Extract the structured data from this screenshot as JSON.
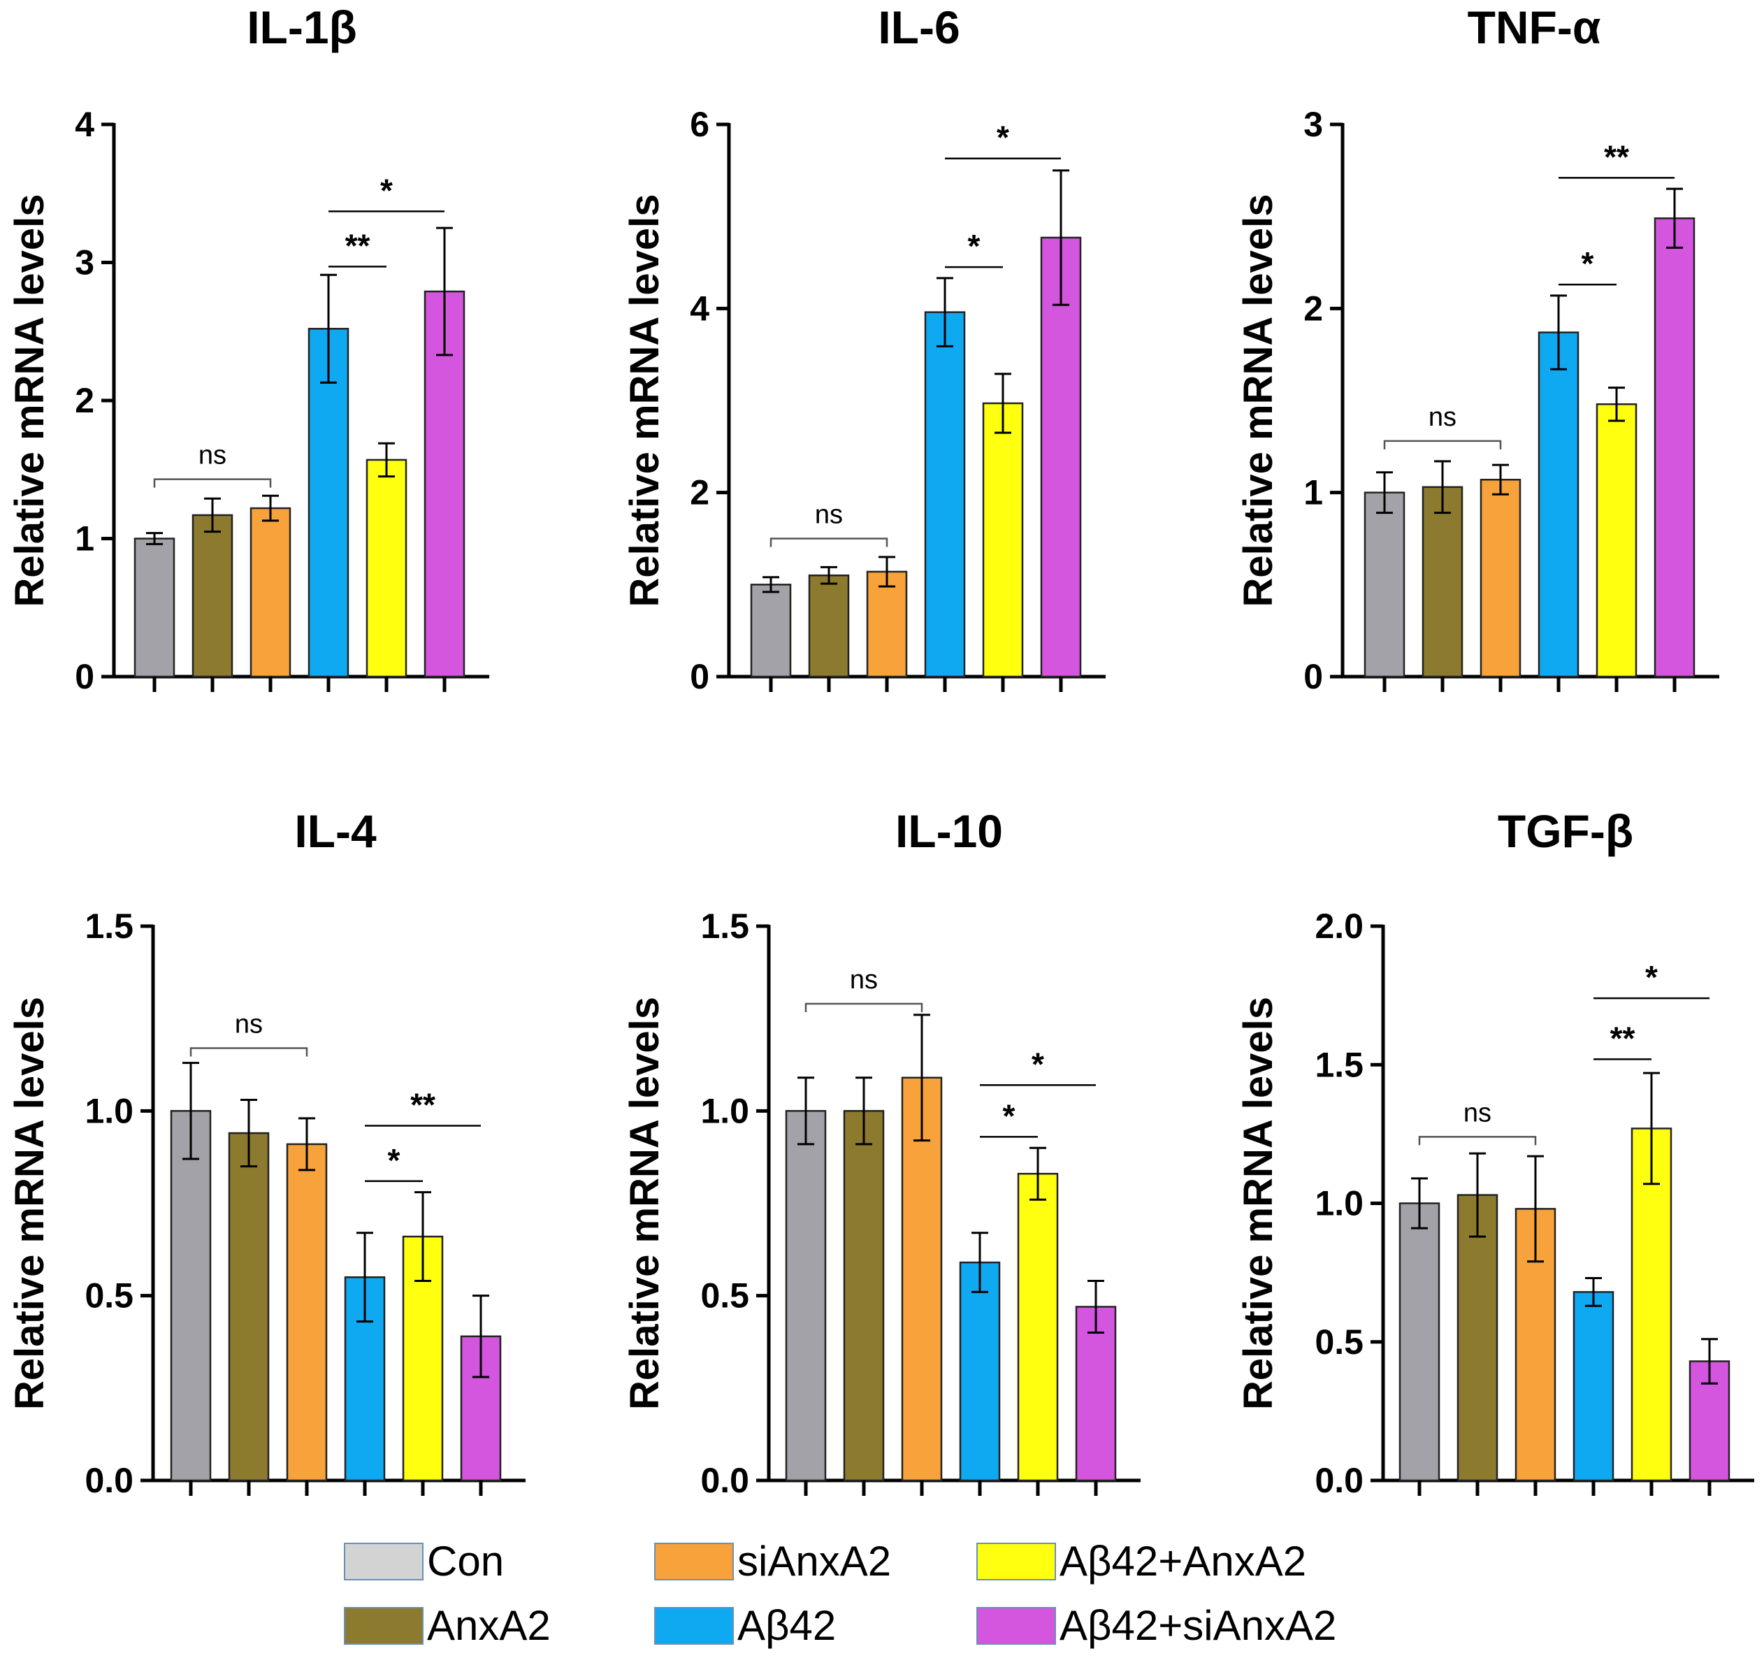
{
  "legend": [
    {
      "label": "Con",
      "color": "#d3d3d3"
    },
    {
      "label": "AnxA2",
      "color": "#8c7a2e"
    },
    {
      "label": "siAnxA2",
      "color": "#f7a23a"
    },
    {
      "label": "Aβ42",
      "color": "#0fa9f2"
    },
    {
      "label": "Aβ42+AnxA2",
      "color": "#ffff10"
    },
    {
      "label": "Aβ42+siAnxA2",
      "color": "#d455de"
    }
  ],
  "chart_data": [
    {
      "type": "bar",
      "title": "IL-1β",
      "ylabel": "Relative mRNA levels",
      "ylim": [
        0,
        4
      ],
      "yticks": [
        "0",
        "1",
        "2",
        "3",
        "4"
      ],
      "ytick_values": [
        0,
        1,
        2,
        3,
        4
      ],
      "categories": [
        "Con",
        "AnxA2",
        "siAnxA2",
        "Aβ42",
        "Aβ42+AnxA2",
        "Aβ42+siAnxA2"
      ],
      "bar_colors": [
        "#a3a2a8",
        "#8c7a2e",
        "#f7a23a",
        "#0fa9f2",
        "#ffff10",
        "#d455de"
      ],
      "values": [
        1.0,
        1.17,
        1.22,
        2.52,
        1.57,
        2.79
      ],
      "errors": [
        0.04,
        0.12,
        0.09,
        0.39,
        0.12,
        0.46
      ],
      "significance": [
        {
          "from": 0,
          "to": 2,
          "label": "ns",
          "y": 1.43
        },
        {
          "from": 3,
          "to": 4,
          "label": "**",
          "y": 2.97
        },
        {
          "from": 3,
          "to": 5,
          "label": "*",
          "y": 3.37
        }
      ]
    },
    {
      "type": "bar",
      "title": "IL-6",
      "ylabel": "Relative mRNA levels",
      "ylim": [
        0,
        6
      ],
      "yticks": [
        "0",
        "2",
        "4",
        "6"
      ],
      "ytick_values": [
        0,
        2,
        4,
        6
      ],
      "categories": [
        "Con",
        "AnxA2",
        "siAnxA2",
        "Aβ42",
        "Aβ42+AnxA2",
        "Aβ42+siAnxA2"
      ],
      "bar_colors": [
        "#a3a2a8",
        "#8c7a2e",
        "#f7a23a",
        "#0fa9f2",
        "#ffff10",
        "#d455de"
      ],
      "values": [
        1.0,
        1.1,
        1.14,
        3.96,
        2.97,
        4.77
      ],
      "errors": [
        0.08,
        0.09,
        0.16,
        0.37,
        0.32,
        0.73
      ],
      "significance": [
        {
          "from": 0,
          "to": 2,
          "label": "ns",
          "y": 1.5
        },
        {
          "from": 3,
          "to": 4,
          "label": "*",
          "y": 4.45
        },
        {
          "from": 3,
          "to": 5,
          "label": "*",
          "y": 5.63
        }
      ]
    },
    {
      "type": "bar",
      "title": "TNF-α",
      "ylabel": "Relative mRNA levels",
      "ylim": [
        0,
        3
      ],
      "yticks": [
        "0",
        "1",
        "2",
        "3"
      ],
      "ytick_values": [
        0,
        1,
        2,
        3
      ],
      "categories": [
        "Con",
        "AnxA2",
        "siAnxA2",
        "Aβ42",
        "Aβ42+AnxA2",
        "Aβ42+siAnxA2"
      ],
      "bar_colors": [
        "#a3a2a8",
        "#8c7a2e",
        "#f7a23a",
        "#0fa9f2",
        "#ffff10",
        "#d455de"
      ],
      "values": [
        1.0,
        1.03,
        1.07,
        1.87,
        1.48,
        2.49
      ],
      "errors": [
        0.11,
        0.14,
        0.08,
        0.2,
        0.09,
        0.16
      ],
      "significance": [
        {
          "from": 0,
          "to": 2,
          "label": "ns",
          "y": 1.28
        },
        {
          "from": 3,
          "to": 4,
          "label": "*",
          "y": 2.13
        },
        {
          "from": 3,
          "to": 5,
          "label": "**",
          "y": 2.71
        }
      ]
    },
    {
      "type": "bar",
      "title": "IL-4",
      "ylabel": "Relative mRNA levels",
      "ylim": [
        0,
        1.5
      ],
      "yticks": [
        "0.0",
        "0.5",
        "1.0",
        "1.5"
      ],
      "ytick_values": [
        0,
        0.5,
        1,
        1.5
      ],
      "categories": [
        "Con",
        "AnxA2",
        "siAnxA2",
        "Aβ42",
        "Aβ42+AnxA2",
        "Aβ42+siAnxA2"
      ],
      "bar_colors": [
        "#a3a2a8",
        "#8c7a2e",
        "#f7a23a",
        "#0fa9f2",
        "#ffff10",
        "#d455de"
      ],
      "values": [
        1.0,
        0.94,
        0.91,
        0.55,
        0.66,
        0.39
      ],
      "errors": [
        0.13,
        0.09,
        0.07,
        0.12,
        0.12,
        0.11
      ],
      "significance": [
        {
          "from": 0,
          "to": 2,
          "label": "ns",
          "y": 1.17
        },
        {
          "from": 3,
          "to": 4,
          "label": "*",
          "y": 0.81
        },
        {
          "from": 3,
          "to": 5,
          "label": "**",
          "y": 0.96
        }
      ]
    },
    {
      "type": "bar",
      "title": "IL-10",
      "ylabel": "Relative mRNA levels",
      "ylim": [
        0,
        1.5
      ],
      "yticks": [
        "0.0",
        "0.5",
        "1.0",
        "1.5"
      ],
      "ytick_values": [
        0,
        0.5,
        1,
        1.5
      ],
      "categories": [
        "Con",
        "AnxA2",
        "siAnxA2",
        "Aβ42",
        "Aβ42+AnxA2",
        "Aβ42+siAnxA2"
      ],
      "bar_colors": [
        "#a3a2a8",
        "#8c7a2e",
        "#f7a23a",
        "#0fa9f2",
        "#ffff10",
        "#d455de"
      ],
      "values": [
        1.0,
        1.0,
        1.09,
        0.59,
        0.83,
        0.47
      ],
      "errors": [
        0.09,
        0.09,
        0.17,
        0.08,
        0.07,
        0.07
      ],
      "significance": [
        {
          "from": 0,
          "to": 2,
          "label": "ns",
          "y": 1.29
        },
        {
          "from": 3,
          "to": 4,
          "label": "*",
          "y": 0.93
        },
        {
          "from": 3,
          "to": 5,
          "label": "*",
          "y": 1.07
        }
      ]
    },
    {
      "type": "bar",
      "title": "TGF-β",
      "ylabel": "Relative mRNA levels",
      "ylim": [
        0,
        2.0
      ],
      "yticks": [
        "0.0",
        "0.5",
        "1.0",
        "1.5",
        "2.0"
      ],
      "ytick_values": [
        0,
        0.5,
        1,
        1.5,
        2
      ],
      "categories": [
        "Con",
        "AnxA2",
        "siAnxA2",
        "Aβ42",
        "Aβ42+AnxA2",
        "Aβ42+siAnxA2"
      ],
      "bar_colors": [
        "#a3a2a8",
        "#8c7a2e",
        "#f7a23a",
        "#0fa9f2",
        "#ffff10",
        "#d455de"
      ],
      "values": [
        1.0,
        1.03,
        0.98,
        0.68,
        1.27,
        0.43
      ],
      "errors": [
        0.09,
        0.15,
        0.19,
        0.05,
        0.2,
        0.08
      ],
      "significance": [
        {
          "from": 0,
          "to": 2,
          "label": "ns",
          "y": 1.24
        },
        {
          "from": 3,
          "to": 4,
          "label": "**",
          "y": 1.52
        },
        {
          "from": 3,
          "to": 5,
          "label": "*",
          "y": 1.74
        }
      ]
    }
  ]
}
